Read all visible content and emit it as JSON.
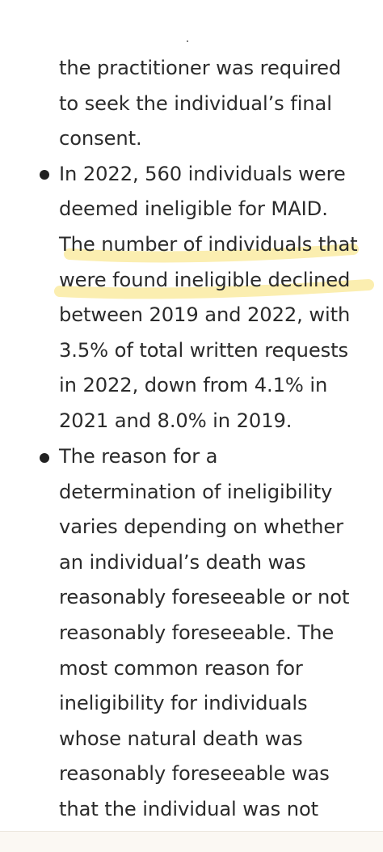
{
  "article": {
    "continued_lines": [
      "the practitioner was required",
      "to seek the individual’s final",
      "consent."
    ],
    "bullets": [
      {
        "lines": [
          "In 2022, 560 individuals were",
          "deemed ineligible for MAID.",
          "The number of individuals that",
          "were found ineligible declined",
          "between 2019 and 2022, with",
          "3.5% of total written requests",
          "in 2022, down from 4.1% in",
          "2021 and 8.0% in 2019."
        ]
      },
      {
        "lines": [
          "The reason for a",
          "determination of ineligibility",
          "varies depending on whether",
          "an individual’s death was",
          "reasonably foreseeable or not",
          "reasonably foreseeable. The",
          "most common reason for",
          "ineligibility for individuals",
          "whose natural death was",
          "reasonably foreseeable was",
          "that the individual was not"
        ]
      }
    ],
    "highlight_color": "#fbeeb0"
  }
}
